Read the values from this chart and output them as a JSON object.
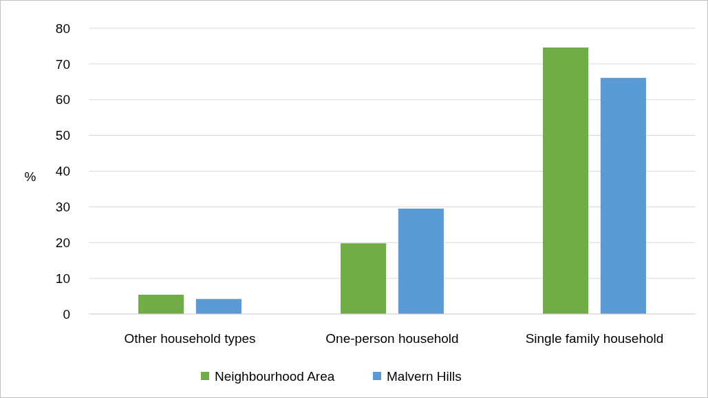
{
  "chart_data": {
    "type": "bar",
    "ylabel": "%",
    "categories": [
      "Other household types",
      "One-person household",
      "Single family household"
    ],
    "series": [
      {
        "name": "Neighbourhood Area",
        "color": "#70ad47",
        "values": [
          5.4,
          19.8,
          74.6
        ]
      },
      {
        "name": "Malvern Hills",
        "color": "#5b9bd5",
        "values": [
          4.2,
          29.5,
          66.1
        ]
      }
    ],
    "ylim": [
      0,
      80
    ],
    "yticks": [
      0,
      10,
      20,
      30,
      40,
      50,
      60,
      70,
      80
    ],
    "grid": "y",
    "legend": "bottom"
  }
}
